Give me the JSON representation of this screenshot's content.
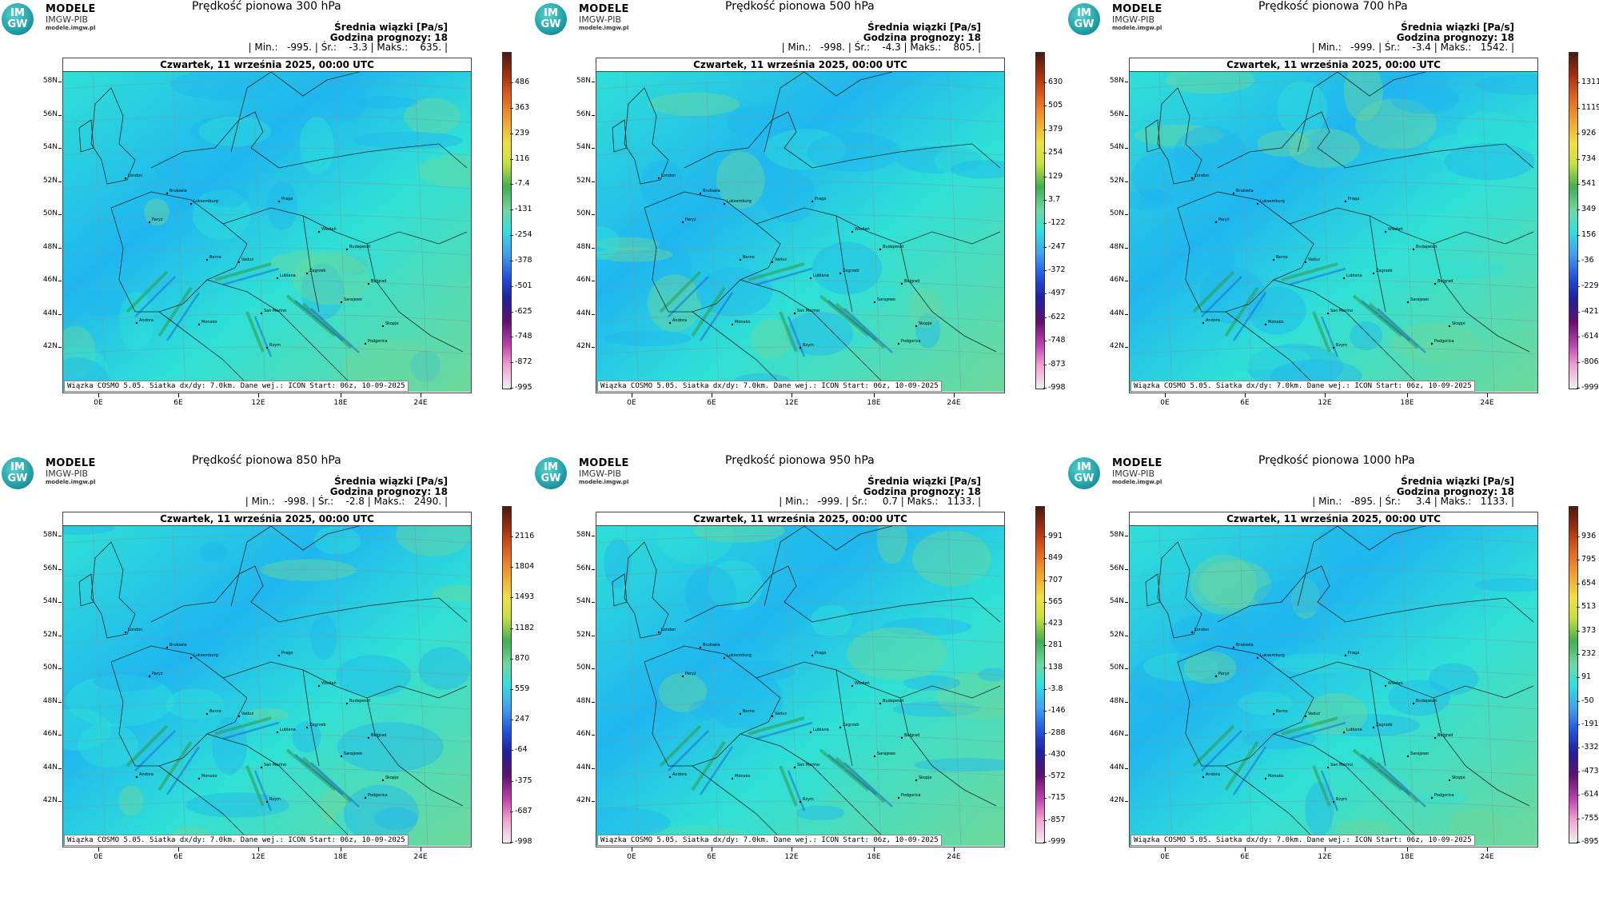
{
  "logo": {
    "circle_top": "IM",
    "circle_bottom": "GW",
    "line1": "MODELE",
    "line2": "IMGW-PIB",
    "line3": "modele.imgw.pl"
  },
  "common": {
    "units_line": "Średnia wiązki [Pa/s]",
    "forecast_line": "Godzina prognozy: 18",
    "date_line": "Czwartek, 11 września 2025, 00:00 UTC",
    "footer": "Wiązka COSMO 5.05. Siatka dx/dy: 7.0km. Dane wej.: ICON Start: 06z, 10-09-2025",
    "lat_labels": [
      "58N",
      "56N",
      "54N",
      "52N",
      "50N",
      "48N",
      "46N",
      "44N",
      "42N"
    ],
    "lon_labels": [
      "0E",
      "6E",
      "12E",
      "18E",
      "24E"
    ],
    "cities": [
      "London",
      "Bruksela",
      "Paryż",
      "Luksemburg",
      "Praga",
      "Wiedeń",
      "Budapeszt",
      "Berno",
      "Vaduz",
      "Zagrzeb",
      "Lublana",
      "Belgrad",
      "Sarajewo",
      "San Marino",
      "Andora",
      "Monako",
      "Rzym",
      "Skopje",
      "Podgorica"
    ]
  },
  "panels": [
    {
      "title": "Prędkość pionowa 300 hPa",
      "stats": "| Min.:   -995. | Śr.:    -3.3 | Maks.:    635. |",
      "colorbar": [
        "486",
        "363",
        "239",
        "116",
        "-7.4",
        "-131",
        "-254",
        "-378",
        "-501",
        "-625",
        "-748",
        "-872",
        "-995"
      ]
    },
    {
      "title": "Prędkość pionowa 500 hPa",
      "stats": "| Min.:   -998. | Śr.:    -4.3 | Maks.:    805. |",
      "colorbar": [
        "630",
        "505",
        "379",
        "254",
        "129",
        "3.7",
        "-122",
        "-247",
        "-372",
        "-497",
        "-622",
        "-748",
        "-873",
        "-998"
      ]
    },
    {
      "title": "Prędkość pionowa 700 hPa",
      "stats": "| Min.:   -999. | Śr.:    -3.4 | Maks.:   1542. |",
      "colorbar": [
        "1311",
        "1119",
        "926",
        "734",
        "541",
        "349",
        "156",
        "-36",
        "-229",
        "-421",
        "-614",
        "-806",
        "-999"
      ]
    },
    {
      "title": "Prędkość pionowa 850 hPa",
      "stats": "| Min.:   -998. | Śr.:    -2.8 | Maks.:   2490. |",
      "colorbar": [
        "2116",
        "1804",
        "1493",
        "1182",
        "870",
        "559",
        "247",
        "-64",
        "-375",
        "-687",
        "-998"
      ]
    },
    {
      "title": "Prędkość pionowa 950 hPa",
      "stats": "| Min.:   -999. | Śr.:     0.7 | Maks.:   1133. |",
      "colorbar": [
        "991",
        "849",
        "707",
        "565",
        "423",
        "281",
        "138",
        "-3.8",
        "-146",
        "-288",
        "-430",
        "-572",
        "-715",
        "-857",
        "-999"
      ]
    },
    {
      "title": "Prędkość pionowa 1000 hPa",
      "stats": "| Min.:   -895. | Śr.:     3.4 | Maks.:   1133. |",
      "colorbar": [
        "936",
        "795",
        "654",
        "513",
        "373",
        "232",
        "91",
        "-50",
        "-191",
        "-332",
        "-473",
        "-614",
        "-755",
        "-895"
      ]
    }
  ],
  "colors": {
    "field_base": "#2fe0d6",
    "field_blue": "#1fb6f0",
    "field_green": "#6fd89a",
    "field_darkgreen": "#2f9a4a",
    "colorbar_stops": [
      "#4a1a10",
      "#a83210",
      "#e06020",
      "#f0a030",
      "#f0e040",
      "#c8e040",
      "#40b050",
      "#70d8a0",
      "#30e0e0",
      "#40a0f0",
      "#2050e0",
      "#2020a0",
      "#601070",
      "#c040b0",
      "#f0a0d0",
      "#f0f0f0"
    ]
  }
}
